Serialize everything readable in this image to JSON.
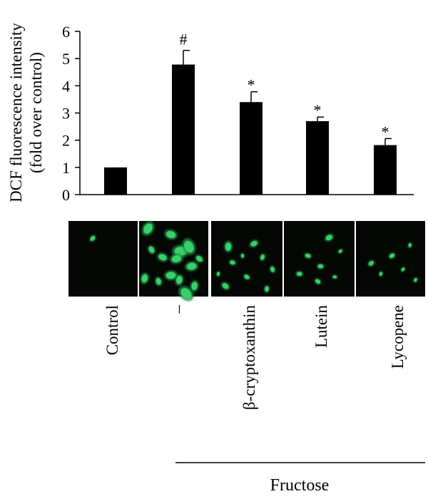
{
  "chart_data": {
    "type": "bar",
    "ylabel_line1": "DCF fluorescence intensity",
    "ylabel_line2": "(fold over control)",
    "ylim": [
      0,
      6
    ],
    "yticks": [
      0,
      1,
      2,
      3,
      4,
      5,
      6
    ],
    "grid": false,
    "legend": "none",
    "bar_color": "#000000",
    "categories": [
      "Control",
      "–",
      "β-cryptoxanthin",
      "Lutein",
      "Lycopene"
    ],
    "values": [
      1.0,
      4.78,
      3.4,
      2.7,
      1.82
    ],
    "errors": [
      0.0,
      0.52,
      0.38,
      0.15,
      0.24
    ],
    "markers": [
      "",
      "#",
      "*",
      "*",
      "*"
    ],
    "group_label": "Fructose",
    "group_members": [
      "–",
      "β-cryptoxanthin",
      "Lutein",
      "Lycopene"
    ]
  },
  "micrographs": [
    {
      "category": "Control",
      "cells": [
        [
          35,
          23,
          4
        ]
      ]
    },
    {
      "category": "–",
      "cells": [
        [
          13,
          10,
          8
        ],
        [
          46,
          18,
          7
        ],
        [
          60,
          40,
          9
        ],
        [
          72,
          34,
          9
        ],
        [
          54,
          50,
          7
        ],
        [
          34,
          48,
          6
        ],
        [
          18,
          38,
          5
        ],
        [
          76,
          60,
          7
        ],
        [
          8,
          76,
          6
        ],
        [
          46,
          72,
          7
        ],
        [
          68,
          96,
          9
        ],
        [
          28,
          80,
          5
        ],
        [
          80,
          86,
          6
        ],
        [
          58,
          78,
          6
        ],
        [
          87,
          50,
          5
        ]
      ]
    },
    {
      "category": "β-cryptoxanthin",
      "cells": [
        [
          24,
          34,
          6
        ],
        [
          60,
          30,
          5
        ],
        [
          30,
          55,
          4
        ],
        [
          72,
          48,
          4
        ],
        [
          50,
          74,
          4
        ],
        [
          20,
          86,
          5
        ],
        [
          86,
          64,
          4
        ],
        [
          44,
          46,
          3
        ],
        [
          78,
          90,
          4
        ],
        [
          10,
          70,
          3
        ]
      ]
    },
    {
      "category": "Lutein",
      "cells": [
        [
          64,
          22,
          5
        ],
        [
          34,
          46,
          4
        ],
        [
          52,
          60,
          4
        ],
        [
          22,
          70,
          4
        ],
        [
          80,
          40,
          3
        ],
        [
          48,
          80,
          4
        ],
        [
          72,
          74,
          3
        ]
      ]
    },
    {
      "category": "Lycopene",
      "cells": [
        [
          78,
          32,
          3
        ],
        [
          52,
          46,
          4
        ],
        [
          22,
          56,
          4
        ],
        [
          36,
          70,
          3
        ],
        [
          68,
          64,
          3
        ],
        [
          86,
          78,
          3
        ]
      ]
    }
  ],
  "colors": {
    "cell_fill": "#38d06a",
    "cell_glow": "#1b8f43",
    "panel_bg": "#050705",
    "divider": "#ffffff"
  }
}
